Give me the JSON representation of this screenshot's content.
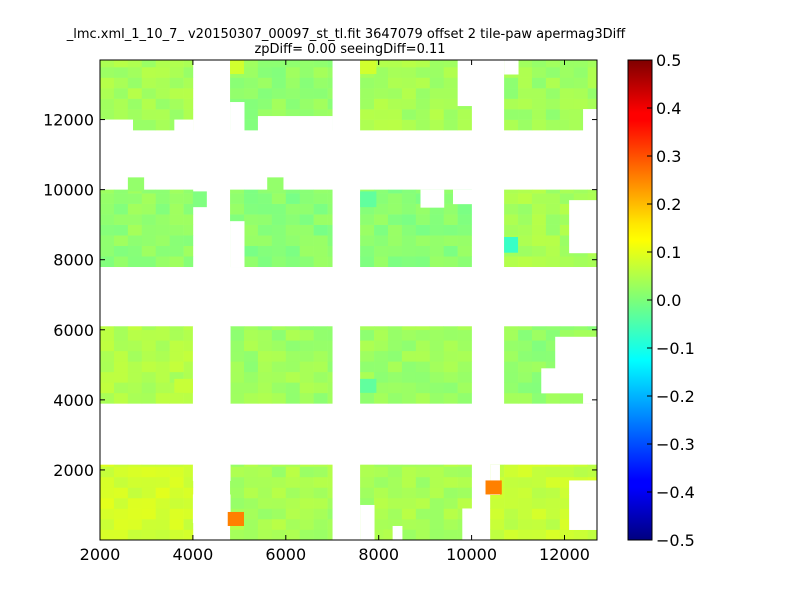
{
  "chart_data": {
    "type": "heatmap",
    "title": "_lmc.xml_1_10_7_ v20150307_00097_st_tl.fit 3647079 offset 2 tile-paw apermag3Diff",
    "subtitle": "zpDiff= 0.00 seeingDiff=0.11",
    "xlabel": "",
    "ylabel": "",
    "xlim": [
      2000,
      12700
    ],
    "ylim": [
      0,
      13700
    ],
    "x_ticks": [
      2000,
      4000,
      6000,
      8000,
      10000,
      12000
    ],
    "y_ticks": [
      2000,
      4000,
      6000,
      8000,
      10000,
      12000
    ],
    "x_tick_labels": [
      "2000",
      "4000",
      "6000",
      "8000",
      "10000",
      "12000"
    ],
    "y_tick_labels": [
      "2000",
      "4000",
      "6000",
      "8000",
      "10000",
      "12000"
    ],
    "colorbar": {
      "colormap": "jet",
      "vmin": -0.5,
      "vmax": 0.5,
      "ticks": [
        -0.5,
        -0.4,
        -0.3,
        -0.2,
        -0.1,
        0.0,
        0.1,
        0.2,
        0.3,
        0.4,
        0.5
      ],
      "tick_labels": [
        "−0.5",
        "−0.4",
        "−0.3",
        "−0.2",
        "−0.1",
        "0.0",
        "0.1",
        "0.2",
        "0.3",
        "0.4",
        "0.5"
      ]
    },
    "cell_size": [
      300,
      300
    ],
    "tiles": [
      {
        "x": [
          2000,
          4000
        ],
        "y": [
          0,
          2150
        ],
        "value": 0.08
      },
      {
        "x": [
          4800,
          7000
        ],
        "y": [
          0,
          2150
        ],
        "value": 0.04
      },
      {
        "x": [
          7600,
          10000
        ],
        "y": [
          0,
          2150
        ],
        "value": 0.04
      },
      {
        "x": [
          10400,
          12700
        ],
        "y": [
          0,
          2150
        ],
        "value": 0.07
      },
      {
        "x": [
          2000,
          4000
        ],
        "y": [
          3900,
          6100
        ],
        "value": 0.05
      },
      {
        "x": [
          4800,
          7000
        ],
        "y": [
          3900,
          6100
        ],
        "value": 0.03
      },
      {
        "x": [
          7600,
          10000
        ],
        "y": [
          3900,
          6100
        ],
        "value": 0.03
      },
      {
        "x": [
          10700,
          12700
        ],
        "y": [
          3900,
          6100
        ],
        "value": 0.02
      },
      {
        "x": [
          2000,
          4000
        ],
        "y": [
          7800,
          10000
        ],
        "value": 0.02
      },
      {
        "x": [
          4800,
          7000
        ],
        "y": [
          7800,
          10000
        ],
        "value": 0.01
      },
      {
        "x": [
          7600,
          10000
        ],
        "y": [
          7800,
          10000
        ],
        "value": 0.01
      },
      {
        "x": [
          10700,
          12700
        ],
        "y": [
          7800,
          10000
        ],
        "value": 0.04
      },
      {
        "x": [
          2000,
          4000
        ],
        "y": [
          11700,
          13700
        ],
        "value": 0.04
      },
      {
        "x": [
          4800,
          7000
        ],
        "y": [
          11700,
          13700
        ],
        "value": 0.02
      },
      {
        "x": [
          7600,
          10000
        ],
        "y": [
          11700,
          13700
        ],
        "value": 0.04
      },
      {
        "x": [
          10700,
          12700
        ],
        "y": [
          11700,
          13700
        ],
        "value": 0.03
      }
    ],
    "gaps": [
      {
        "x": [
          4000,
          4800
        ],
        "y": [
          1700,
          2150
        ]
      },
      {
        "x": [
          4000,
          4800
        ],
        "y": [
          500,
          1300
        ]
      },
      {
        "x": [
          4500,
          4800
        ],
        "y": [
          3900,
          6100
        ]
      },
      {
        "x": [
          4000,
          4500
        ],
        "y": [
          3900,
          6100
        ]
      },
      {
        "x": [
          7600,
          7900
        ],
        "y": [
          0,
          1000
        ]
      },
      {
        "x": [
          8300,
          8500
        ],
        "y": [
          0,
          400
        ]
      },
      {
        "x": [
          9800,
          10000
        ],
        "y": [
          0,
          900
        ]
      },
      {
        "x": [
          10400,
          10600
        ],
        "y": [
          1300,
          2150
        ]
      },
      {
        "x": [
          12100,
          12700
        ],
        "y": [
          300,
          1300
        ]
      },
      {
        "x": [
          12100,
          12700
        ],
        "y": [
          1300,
          1700
        ]
      },
      {
        "x": [
          11500,
          12700
        ],
        "y": [
          4200,
          4900
        ]
      },
      {
        "x": [
          12400,
          12700
        ],
        "y": [
          3900,
          4300
        ]
      },
      {
        "x": [
          11800,
          12700
        ],
        "y": [
          4900,
          5800
        ]
      },
      {
        "x": [
          4800,
          5100
        ],
        "y": [
          7800,
          9100
        ]
      },
      {
        "x": [
          12100,
          12700
        ],
        "y": [
          8200,
          9700
        ]
      },
      {
        "x": [
          4800,
          5100
        ],
        "y": [
          11700,
          12500
        ]
      },
      {
        "x": [
          5400,
          7000
        ],
        "y": [
          11700,
          12100
        ]
      },
      {
        "x": [
          2000,
          2700
        ],
        "y": [
          11700,
          12000
        ]
      },
      {
        "x": [
          3600,
          4000
        ],
        "y": [
          11700,
          12000
        ]
      },
      {
        "x": [
          12400,
          12700
        ],
        "y": [
          11700,
          12300
        ]
      },
      {
        "x": [
          10700,
          11000
        ],
        "y": [
          13300,
          13700
        ]
      },
      {
        "x": [
          9700,
          10000
        ],
        "y": [
          12400,
          13700
        ]
      },
      {
        "x": [
          8900,
          9400
        ],
        "y": [
          9500,
          10000
        ]
      },
      {
        "x": [
          9600,
          10000
        ],
        "y": [
          9600,
          10000
        ]
      }
    ],
    "extras": [
      {
        "x": [
          2600,
          2950
        ],
        "y": [
          9950,
          10350
        ],
        "value": 0.02
      },
      {
        "x": [
          5600,
          5950
        ],
        "y": [
          9950,
          10350
        ],
        "value": 0.02
      },
      {
        "x": [
          4000,
          4300
        ],
        "y": [
          9500,
          9950
        ],
        "value": 0.0
      },
      {
        "x": [
          8100,
          8400
        ],
        "y": [
          0,
          300
        ],
        "value": 0.05
      },
      {
        "x": [
          12100,
          12350
        ],
        "y": [
          11700,
          12300
        ],
        "value": 0.04
      },
      {
        "x": [
          4000,
          4350
        ],
        "y": [
          4200,
          4500
        ],
        "value": 0.03
      }
    ],
    "highlights": [
      {
        "x": [
          10300,
          10650
        ],
        "y": [
          1300,
          1700
        ],
        "value": 0.25
      },
      {
        "x": [
          4750,
          5100
        ],
        "y": [
          400,
          800
        ],
        "value": 0.25
      },
      {
        "x": [
          7600,
          7950
        ],
        "y": [
          4200,
          4600
        ],
        "value": -0.03
      },
      {
        "x": [
          7600,
          7950
        ],
        "y": [
          9500,
          9950
        ],
        "value": -0.03
      },
      {
        "x": [
          10700,
          11000
        ],
        "y": [
          8200,
          8650
        ],
        "value": -0.07
      },
      {
        "x": [
          3600,
          4000
        ],
        "y": [
          4200,
          4600
        ],
        "value": 0.07
      },
      {
        "x": [
          4800,
          5100
        ],
        "y": [
          13300,
          13700
        ],
        "value": 0.08
      },
      {
        "x": [
          7600,
          7950
        ],
        "y": [
          13300,
          13700
        ],
        "value": 0.08
      }
    ]
  }
}
